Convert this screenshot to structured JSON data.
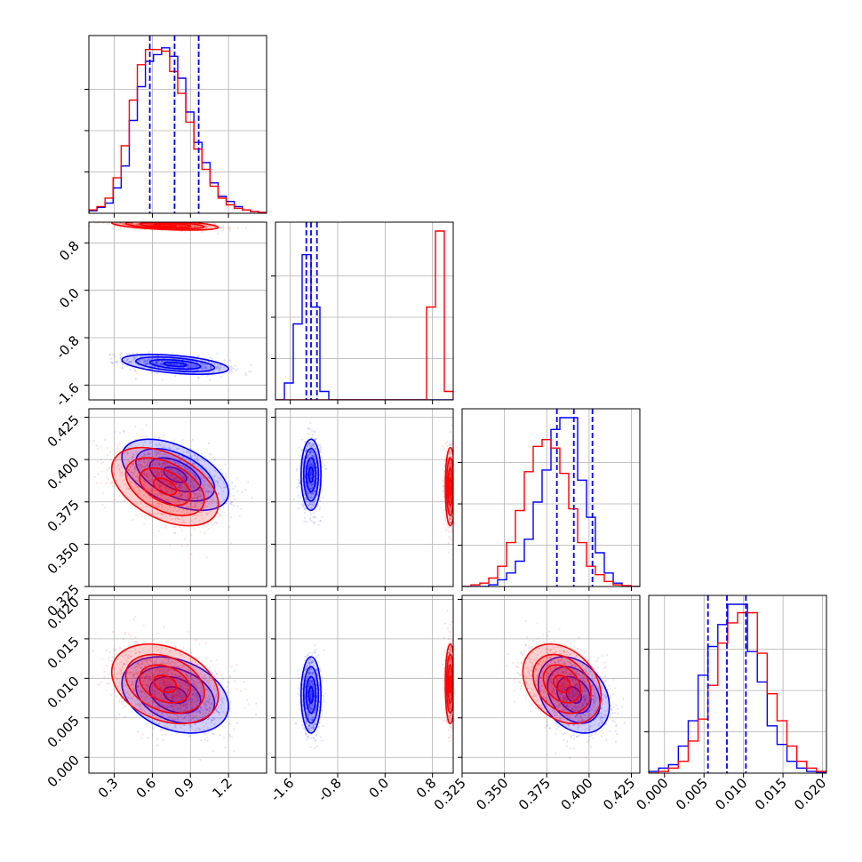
{
  "chart_data": {
    "type": "corner",
    "parameters": 4,
    "series": [
      {
        "name": "",
        "color": "#0000ff"
      },
      {
        "name": "",
        "color": "#ff0000"
      }
    ],
    "grid": true,
    "quantile_lines": {
      "color": "#0000ff",
      "style": "dashed",
      "series": 0
    },
    "axes": [
      {
        "range": [
          0.1,
          1.5
        ],
        "ticks": [
          "0.3",
          "0.6",
          "0.9",
          "1.2"
        ]
      },
      {
        "range": [
          -1.85,
          1.15
        ],
        "ticks": [
          "-1.6",
          "-0.8",
          "0.0",
          "0.8"
        ]
      },
      {
        "range": [
          0.325,
          0.43
        ],
        "ticks": [
          "0.325",
          "0.350",
          "0.375",
          "0.400",
          "0.425"
        ]
      },
      {
        "range": [
          -0.002,
          0.0205
        ],
        "ticks": [
          "0.000",
          "0.005",
          "0.010",
          "0.015",
          "0.020"
        ]
      }
    ],
    "quantiles": [
      [
        0.58,
        0.775,
        0.965
      ],
      [
        -1.33,
        -1.25,
        -1.15
      ],
      [
        0.381,
        0.391,
        0.402
      ],
      [
        0.0055,
        0.0079,
        0.0103
      ]
    ],
    "histograms": [
      {
        "blue": {
          "edges": [
            0.1,
            1.5
          ],
          "counts": [
            0.015,
            0.035,
            0.06,
            0.15,
            0.28,
            0.55,
            0.75,
            0.9,
            0.94,
            0.98,
            0.93,
            0.8,
            0.6,
            0.42,
            0.3,
            0.18,
            0.1,
            0.07,
            0.04,
            0.02,
            0.01,
            0.005
          ]
        },
        "red": {
          "edges": [
            0.1,
            1.5
          ],
          "counts": [
            0.02,
            0.04,
            0.09,
            0.21,
            0.4,
            0.67,
            0.88,
            0.97,
            0.97,
            0.96,
            0.84,
            0.71,
            0.54,
            0.38,
            0.26,
            0.16,
            0.09,
            0.05,
            0.03,
            0.02,
            0.01,
            0.005
          ]
        }
      },
      {
        "blue": {
          "edges": [
            -1.85,
            1.15
          ],
          "counts": [
            0,
            0.1,
            0.45,
            0.86,
            0.55,
            0.05,
            0,
            0,
            0,
            0,
            0,
            0,
            0,
            0,
            0,
            0,
            0,
            0,
            0,
            0
          ]
        },
        "red": {
          "edges": [
            -1.85,
            1.15
          ],
          "counts": [
            0,
            0,
            0,
            0,
            0,
            0,
            0,
            0,
            0,
            0,
            0,
            0,
            0,
            0,
            0,
            0,
            0,
            0.55,
            1.0,
            0.05
          ]
        }
      },
      {
        "blue": {
          "edges": [
            0.325,
            0.43
          ],
          "counts": [
            0,
            0,
            0,
            0.01,
            0.04,
            0.08,
            0.15,
            0.28,
            0.5,
            0.69,
            0.93,
            1.0,
            1.0,
            0.63,
            0.41,
            0.2,
            0.08,
            0.02,
            0.005,
            0
          ]
        },
        "red": {
          "edges": [
            0.325,
            0.43
          ],
          "counts": [
            0,
            0.01,
            0.02,
            0.05,
            0.12,
            0.26,
            0.45,
            0.68,
            0.83,
            0.87,
            0.82,
            0.67,
            0.46,
            0.26,
            0.12,
            0.07,
            0.03,
            0.01,
            0.005,
            0
          ]
        }
      },
      {
        "blue": {
          "edges": [
            -0.002,
            0.0205
          ],
          "counts": [
            0.01,
            0.03,
            0.05,
            0.16,
            0.31,
            0.58,
            0.75,
            0.88,
            1.0,
            1.0,
            0.72,
            0.54,
            0.28,
            0.17,
            0.07,
            0.03,
            0.01,
            0.005
          ]
        },
        "red": {
          "edges": [
            -0.002,
            0.0205
          ],
          "counts": [
            0,
            0.01,
            0.03,
            0.07,
            0.19,
            0.32,
            0.52,
            0.77,
            0.89,
            0.95,
            0.95,
            0.71,
            0.47,
            0.31,
            0.16,
            0.07,
            0.03,
            0.01
          ]
        }
      }
    ],
    "distributions": [
      {
        "color": "#0000ff",
        "means": [
          0.78,
          -1.25,
          0.391,
          0.0079
        ],
        "sds": [
          0.2,
          0.08,
          0.01,
          0.0023
        ],
        "corr": [
          [
            1,
            -0.45,
            -0.5,
            -0.3
          ],
          [
            -0.45,
            1,
            0,
            0
          ],
          [
            -0.5,
            0,
            1,
            -0.3
          ],
          [
            -0.3,
            0,
            -0.3,
            1
          ]
        ]
      },
      {
        "color": "#ff0000",
        "means": [
          0.7,
          1.1,
          0.384,
          0.0093
        ],
        "sds": [
          0.2,
          0.04,
          0.011,
          0.0024
        ],
        "corr": [
          [
            1,
            -0.45,
            -0.45,
            -0.3
          ],
          [
            -0.45,
            1,
            0,
            0
          ],
          [
            -0.45,
            0,
            1,
            -0.3
          ],
          [
            -0.3,
            0,
            -0.3,
            1
          ]
        ]
      }
    ],
    "contour_levels": [
      0.45,
      1.0,
      1.55,
      2.1
    ]
  }
}
